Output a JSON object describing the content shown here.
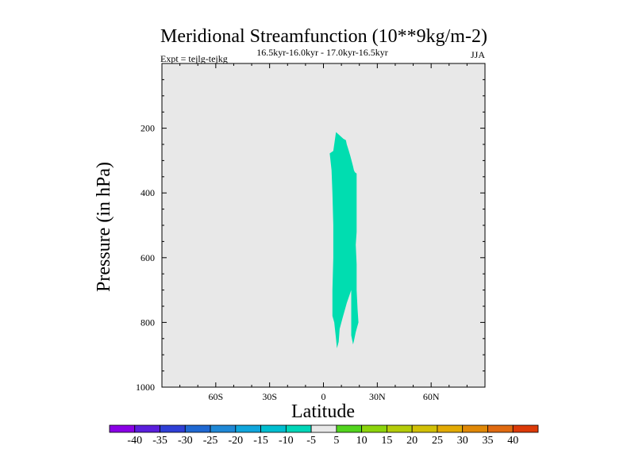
{
  "chart_data": {
    "type": "contour",
    "title": "Meridional Streamfunction (10**9kg/m-2)",
    "subtitle_left": "Expt = tejlg-tejkg",
    "subtitle_center": "16.5kyr-16.0kyr - 17.0kyr-16.5kyr",
    "subtitle_right": "JJA",
    "xlabel": "Latitude",
    "ylabel": "Pressure (in hPa)",
    "xlim": [
      -90,
      90
    ],
    "ylim": [
      1000,
      0
    ],
    "x_ticks": [
      {
        "value": -60,
        "label": "60S"
      },
      {
        "value": -30,
        "label": "30S"
      },
      {
        "value": 0,
        "label": "0"
      },
      {
        "value": 30,
        "label": "30N"
      },
      {
        "value": 60,
        "label": "60N"
      }
    ],
    "y_ticks": [
      {
        "value": 200,
        "label": "200"
      },
      {
        "value": 400,
        "label": "400"
      },
      {
        "value": 600,
        "label": "600"
      },
      {
        "value": 800,
        "label": "800"
      },
      {
        "value": 1000,
        "label": "1000"
      }
    ],
    "background_color": "#e8e8e8",
    "contour_regions": [
      {
        "name": "negative-cell",
        "level_range": [
          -10,
          -5
        ],
        "color": "#00ddb0",
        "outline": [
          [
            3.5,
            278
          ],
          [
            5.5,
            270
          ],
          [
            7,
            212
          ],
          [
            9,
            222
          ],
          [
            11,
            232
          ],
          [
            12.5,
            237
          ],
          [
            13,
            250
          ],
          [
            14,
            268
          ],
          [
            15,
            286
          ],
          [
            16.5,
            318
          ],
          [
            17,
            330
          ],
          [
            17.5,
            336
          ],
          [
            18.5,
            340
          ],
          [
            18.5,
            420
          ],
          [
            18.5,
            520
          ],
          [
            18,
            560
          ],
          [
            18.5,
            620
          ],
          [
            18.5,
            700
          ],
          [
            19,
            760
          ],
          [
            19.5,
            800
          ],
          [
            18,
            830
          ],
          [
            17,
            857
          ],
          [
            16.5,
            868
          ],
          [
            15.5,
            840
          ],
          [
            15.5,
            780
          ],
          [
            15.5,
            720
          ],
          [
            15.5,
            700
          ],
          [
            13,
            740
          ],
          [
            10.5,
            790
          ],
          [
            9,
            820
          ],
          [
            8.5,
            860
          ],
          [
            7.5,
            880
          ],
          [
            7,
            850
          ],
          [
            6,
            800
          ],
          [
            5,
            780
          ],
          [
            5,
            700
          ],
          [
            5.5,
            600
          ],
          [
            5.5,
            500
          ],
          [
            5,
            400
          ],
          [
            4.5,
            330
          ]
        ]
      }
    ],
    "colorbar": {
      "levels": [
        "-40",
        "-35",
        "-30",
        "-25",
        "-20",
        "-15",
        "-10",
        "-5",
        "5",
        "10",
        "15",
        "20",
        "25",
        "30",
        "35",
        "40"
      ],
      "colors": [
        "#8a00e6",
        "#5a1edc",
        "#2f3fd6",
        "#1f68d2",
        "#1f88d6",
        "#10a6dc",
        "#00bed0",
        "#00d6b8",
        "#e8e8e8",
        "#52d41e",
        "#8cd40c",
        "#b4cc0a",
        "#d2c006",
        "#e2aa04",
        "#e08806",
        "#e06a10",
        "#dc3a08"
      ]
    }
  }
}
